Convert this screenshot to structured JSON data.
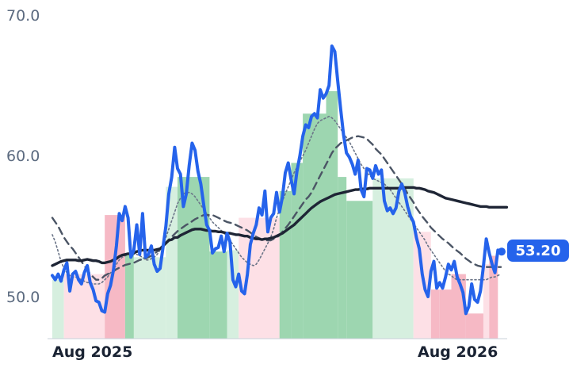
{
  "chart_data": {
    "type": "line",
    "title": "",
    "xlabel": "",
    "ylabel": "",
    "ylim": [
      47,
      70
    ],
    "y_ticks": [
      "50.0",
      "60.0",
      "70.0"
    ],
    "x_ticks": [
      "Aug 2025",
      "Aug 2026"
    ],
    "grid": false,
    "last_value_label": "53.20",
    "colors": {
      "price": "#2563eb",
      "sma_long": "#1e2535",
      "sma_mid": "#4b5565",
      "sma_short": "#6b7588",
      "bull_strong": "#9dd6b0",
      "bull_weak": "#d6efdf",
      "bear_strong": "#f6b9c5",
      "bear_weak": "#fde0e6",
      "label_bg": "#2563eb"
    },
    "series": [
      {
        "role": "price",
        "values": [
          51.5,
          51.2,
          51.6,
          51.1,
          51.9,
          52.4,
          50.4,
          51.6,
          51.8,
          51.2,
          50.9,
          51.7,
          52.2,
          51.0,
          50.5,
          49.7,
          49.6,
          49.0,
          48.9,
          50.2,
          50.8,
          51.9,
          53.6,
          55.9,
          55.4,
          56.4,
          55.6,
          52.8,
          53.3,
          55.1,
          53.0,
          55.9,
          52.8,
          53.0,
          53.6,
          52.3,
          51.8,
          52.0,
          53.5,
          55.0,
          57.3,
          58.5,
          60.6,
          59.1,
          58.7,
          56.4,
          57.3,
          59.3,
          60.9,
          60.4,
          58.9,
          58.0,
          56.5,
          55.1,
          54.7,
          53.1,
          53.4,
          53.5,
          54.3,
          53.2,
          54.5,
          53.9,
          51.2,
          50.7,
          51.6,
          50.4,
          50.2,
          51.6,
          53.7,
          54.5,
          55.1,
          56.3,
          55.8,
          57.5,
          54.6,
          55.6,
          55.9,
          57.4,
          56.0,
          57.1,
          58.8,
          59.5,
          58.3,
          57.3,
          58.9,
          60.0,
          61.4,
          62.2,
          62.0,
          62.8,
          63.0,
          62.7,
          64.7,
          64.1,
          64.4,
          65.0,
          67.8,
          67.4,
          65.3,
          63.3,
          61.5,
          60.2,
          59.9,
          59.4,
          58.7,
          59.7,
          57.6,
          57.1,
          59.1,
          59.0,
          58.4,
          59.3,
          58.7,
          59.0,
          56.8,
          56.1,
          56.3,
          55.9,
          56.3,
          57.5,
          58.0,
          57.4,
          56.4,
          55.7,
          55.3,
          54.2,
          53.4,
          51.6,
          50.5,
          50.0,
          51.8,
          52.5,
          50.6,
          51.0,
          50.6,
          51.4,
          52.3,
          51.9,
          52.5,
          51.4,
          50.9,
          50.3,
          48.8,
          49.3,
          50.9,
          49.8,
          49.6,
          50.4,
          52.1,
          54.1,
          53.1,
          52.3,
          51.7,
          53.3,
          53.2
        ]
      },
      {
        "role": "sma_long",
        "values": [
          52.2,
          52.3,
          52.4,
          52.5,
          52.55,
          52.6,
          52.6,
          52.6,
          52.6,
          52.55,
          52.55,
          52.6,
          52.65,
          52.6,
          52.55,
          52.55,
          52.5,
          52.4,
          52.4,
          52.45,
          52.5,
          52.6,
          52.7,
          52.85,
          52.95,
          53.0,
          53.05,
          53.05,
          53.1,
          53.2,
          53.25,
          53.3,
          53.3,
          53.3,
          53.3,
          53.3,
          53.35,
          53.4,
          53.6,
          53.8,
          54.0,
          54.05,
          54.2,
          54.2,
          54.35,
          54.45,
          54.55,
          54.65,
          54.75,
          54.8,
          54.8,
          54.8,
          54.75,
          54.7,
          54.7,
          54.65,
          54.65,
          54.6,
          54.6,
          54.55,
          54.5,
          54.5,
          54.45,
          54.4,
          54.4,
          54.35,
          54.3,
          54.3,
          54.2,
          54.15,
          54.1,
          54.1,
          54.05,
          54.1,
          54.1,
          54.15,
          54.2,
          54.3,
          54.4,
          54.5,
          54.65,
          54.8,
          54.95,
          55.1,
          55.3,
          55.5,
          55.7,
          55.9,
          56.1,
          56.3,
          56.45,
          56.6,
          56.75,
          56.85,
          56.95,
          57.05,
          57.15,
          57.25,
          57.3,
          57.35,
          57.4,
          57.45,
          57.5,
          57.55,
          57.6,
          57.6,
          57.65,
          57.65,
          57.65,
          57.7,
          57.7,
          57.7,
          57.7,
          57.7,
          57.7,
          57.7,
          57.7,
          57.7,
          57.7,
          57.7,
          57.7,
          57.75,
          57.75,
          57.75,
          57.75,
          57.7,
          57.7,
          57.65,
          57.6,
          57.5,
          57.45,
          57.4,
          57.3,
          57.2,
          57.1,
          57.0,
          56.95,
          56.9,
          56.85,
          56.8,
          56.75,
          56.7,
          56.65,
          56.6,
          56.55,
          56.5,
          56.45,
          56.4,
          56.4,
          56.4,
          56.35,
          56.35,
          56.35,
          56.35,
          56.35,
          56.35,
          56.35
        ]
      },
      {
        "role": "sma_mid",
        "values": [
          55.6,
          55.3,
          55.0,
          54.6,
          54.2,
          53.9,
          53.6,
          53.4,
          53.1,
          52.8,
          52.5,
          52.2,
          51.9,
          51.6,
          51.4,
          51.2,
          51.2,
          51.3,
          51.5,
          51.6,
          51.7,
          51.8,
          51.95,
          52.05,
          52.15,
          52.25,
          52.3,
          52.35,
          52.4,
          52.5,
          52.6,
          52.65,
          52.7,
          52.8,
          52.9,
          53.05,
          53.2,
          53.4,
          53.65,
          53.85,
          54.05,
          54.25,
          54.45,
          54.65,
          54.8,
          54.95,
          55.1,
          55.2,
          55.35,
          55.5,
          55.6,
          55.7,
          55.8,
          55.8,
          55.8,
          55.8,
          55.7,
          55.6,
          55.5,
          55.4,
          55.3,
          55.25,
          55.2,
          55.1,
          55.0,
          54.9,
          54.8,
          54.7,
          54.55,
          54.4,
          54.25,
          54.15,
          54.05,
          54.0,
          54.0,
          54.0,
          54.1,
          54.2,
          54.35,
          54.6,
          54.85,
          55.1,
          55.4,
          55.7,
          56.0,
          56.3,
          56.6,
          56.9,
          57.1,
          57.4,
          57.8,
          58.2,
          58.6,
          59.0,
          59.4,
          59.8,
          60.2,
          60.5,
          60.7,
          60.9,
          61.0,
          61.1,
          61.2,
          61.3,
          61.35,
          61.4,
          61.35,
          61.3,
          61.2,
          61.0,
          60.8,
          60.5,
          60.3,
          60.1,
          59.8,
          59.5,
          59.2,
          58.9,
          58.6,
          58.3,
          58.0,
          57.7,
          57.3,
          57.0,
          56.7,
          56.3,
          56.0,
          55.7,
          55.45,
          55.2,
          54.9,
          54.7,
          54.5,
          54.3,
          54.1,
          53.95,
          53.8,
          53.6,
          53.4,
          53.25,
          53.1,
          52.9,
          52.7,
          52.55,
          52.4,
          52.3,
          52.2,
          52.15,
          52.1,
          52.1,
          52.1,
          52.1,
          52.1,
          52.1,
          52.1
        ]
      },
      {
        "role": "sma_short",
        "values": [
          54.4,
          53.9,
          53.2,
          52.5,
          52.0,
          51.7,
          51.5,
          51.4,
          51.4,
          51.3,
          51.2,
          51.1,
          51.0,
          51.0,
          50.9,
          50.9,
          50.9,
          51.0,
          51.2,
          51.4,
          51.7,
          51.9,
          52.3,
          52.6,
          52.8,
          52.9,
          53.0,
          53.0,
          53.0,
          53.0,
          52.9,
          52.8,
          52.6,
          52.6,
          52.7,
          52.8,
          53.0,
          53.3,
          53.7,
          54.2,
          54.8,
          55.4,
          56.0,
          56.6,
          57.0,
          57.3,
          57.4,
          57.4,
          57.3,
          57.1,
          56.8,
          56.5,
          56.2,
          55.9,
          55.6,
          55.3,
          55.1,
          54.9,
          54.7,
          54.5,
          54.3,
          54.0,
          53.7,
          53.4,
          53.1,
          52.8,
          52.6,
          52.4,
          52.3,
          52.2,
          52.3,
          52.6,
          53.0,
          53.4,
          53.8,
          54.2,
          54.8,
          55.6,
          56.2,
          56.8,
          57.3,
          57.8,
          58.3,
          58.8,
          59.2,
          59.6,
          60.0,
          60.4,
          60.9,
          61.4,
          61.9,
          62.3,
          62.5,
          62.6,
          62.7,
          62.8,
          62.7,
          62.5,
          62.2,
          61.9,
          61.6,
          61.3,
          61.0,
          60.6,
          60.2,
          59.8,
          59.4,
          59.1,
          58.8,
          58.6,
          58.4,
          58.3,
          58.2,
          58.1,
          58.0,
          57.8,
          57.6,
          57.3,
          57.0,
          56.7,
          56.4,
          56.1,
          55.8,
          55.5,
          55.2,
          54.9,
          54.6,
          54.3,
          54.0,
          53.6,
          53.3,
          53.0,
          52.7,
          52.4,
          52.1,
          51.8,
          51.6,
          51.5,
          51.3,
          51.2,
          51.2,
          51.2,
          51.2,
          51.2,
          51.2,
          51.2,
          51.2,
          51.2,
          51.2,
          51.2,
          51.3,
          51.4,
          51.4,
          51.5,
          51.6
        ]
      }
    ],
    "regions": [
      {
        "from": 0,
        "to": 4,
        "value": 51.2,
        "kind": "bull_weak"
      },
      {
        "from": 4,
        "to": 18,
        "value": 51.6,
        "kind": "bear_weak"
      },
      {
        "from": 18,
        "to": 25,
        "value": 55.8,
        "kind": "bear_strong"
      },
      {
        "from": 25,
        "to": 28,
        "value": 53.0,
        "kind": "bull_strong"
      },
      {
        "from": 28,
        "to": 39,
        "value": 52.8,
        "kind": "bull_weak"
      },
      {
        "from": 39,
        "to": 43,
        "value": 57.8,
        "kind": "bull_weak"
      },
      {
        "from": 43,
        "to": 54,
        "value": 58.5,
        "kind": "bull_strong"
      },
      {
        "from": 54,
        "to": 60,
        "value": 53.2,
        "kind": "bull_strong"
      },
      {
        "from": 60,
        "to": 64,
        "value": 53.3,
        "kind": "bull_weak"
      },
      {
        "from": 64,
        "to": 78,
        "value": 55.6,
        "kind": "bear_weak"
      },
      {
        "from": 78,
        "to": 82,
        "value": 57.5,
        "kind": "bull_strong"
      },
      {
        "from": 82,
        "to": 86,
        "value": 59.5,
        "kind": "bull_strong"
      },
      {
        "from": 86,
        "to": 94,
        "value": 63.0,
        "kind": "bull_strong"
      },
      {
        "from": 94,
        "to": 98,
        "value": 64.6,
        "kind": "bull_strong"
      },
      {
        "from": 98,
        "to": 101,
        "value": 58.5,
        "kind": "bull_strong"
      },
      {
        "from": 101,
        "to": 110,
        "value": 56.8,
        "kind": "bull_strong"
      },
      {
        "from": 110,
        "to": 124,
        "value": 58.4,
        "kind": "bull_weak"
      },
      {
        "from": 124,
        "to": 130,
        "value": 54.6,
        "kind": "bear_weak"
      },
      {
        "from": 130,
        "to": 133,
        "value": 50.5,
        "kind": "bear_strong"
      },
      {
        "from": 133,
        "to": 137,
        "value": 50.5,
        "kind": "bear_strong"
      },
      {
        "from": 137,
        "to": 142,
        "value": 51.6,
        "kind": "bear_strong"
      },
      {
        "from": 142,
        "to": 148,
        "value": 48.8,
        "kind": "bear_strong"
      },
      {
        "from": 148,
        "to": 150,
        "value": 52.3,
        "kind": "bear_weak"
      },
      {
        "from": 150,
        "to": 153,
        "value": 52.9,
        "kind": "bear_strong"
      }
    ]
  }
}
